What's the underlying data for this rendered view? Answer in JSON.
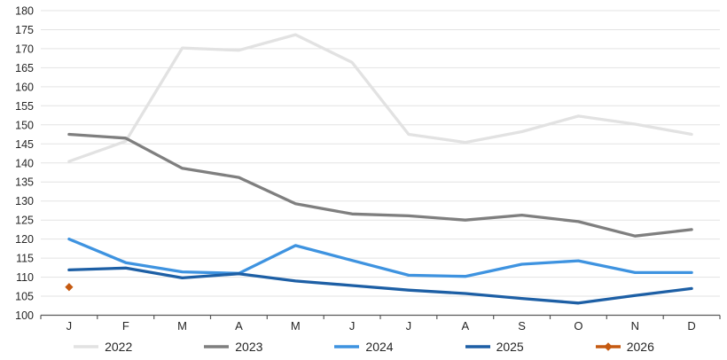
{
  "chart_data": {
    "type": "line",
    "title": "",
    "xlabel": "",
    "ylabel": "",
    "categories": [
      "J",
      "F",
      "M",
      "A",
      "M",
      "J",
      "J",
      "A",
      "S",
      "O",
      "N",
      "D"
    ],
    "ylim": [
      100,
      180
    ],
    "yticks": [
      100,
      105,
      110,
      115,
      120,
      125,
      130,
      135,
      140,
      145,
      150,
      155,
      160,
      165,
      170,
      175,
      180
    ],
    "grid": true,
    "legend_position": "bottom",
    "series": [
      {
        "name": "2022",
        "color": "#E2E2E2",
        "values": [
          140.4,
          145.7,
          170.2,
          169.6,
          173.7,
          166.4,
          147.5,
          145.4,
          148.2,
          152.3,
          150.2,
          147.5
        ]
      },
      {
        "name": "2023",
        "color": "#7F7F7F",
        "values": [
          147.5,
          146.5,
          138.6,
          136.2,
          129.3,
          126.6,
          126.1,
          125.0,
          126.3,
          124.6,
          120.8,
          122.5
        ]
      },
      {
        "name": "2024",
        "color": "#3E93E0",
        "values": [
          120.0,
          113.8,
          111.4,
          111.0,
          118.3,
          114.4,
          110.5,
          110.2,
          113.4,
          114.3,
          111.2,
          111.2
        ]
      },
      {
        "name": "2025",
        "color": "#1D5FA5",
        "values": [
          111.9,
          112.4,
          109.8,
          110.9,
          109.0,
          107.8,
          106.6,
          105.7,
          104.4,
          103.2,
          105.2,
          107.0
        ]
      },
      {
        "name": "2026",
        "color": "#C55A11",
        "marker": "diamond",
        "values": [
          107.4,
          null,
          null,
          null,
          null,
          null,
          null,
          null,
          null,
          null,
          null,
          null
        ]
      }
    ],
    "style": {
      "gridline_color": "#E3E3E3",
      "axis_color": "#595959",
      "tick_label_color": "#262626",
      "line_width": 3.3
    }
  }
}
